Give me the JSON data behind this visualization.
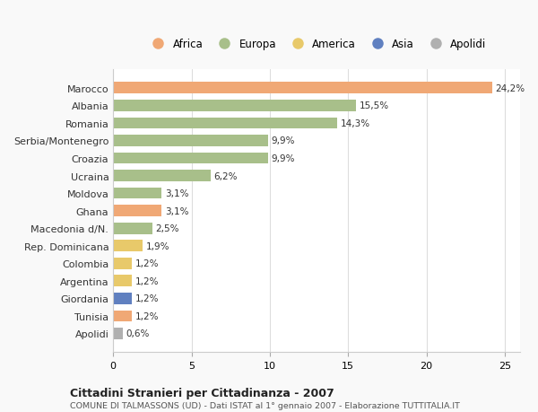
{
  "countries": [
    "Marocco",
    "Albania",
    "Romania",
    "Serbia/Montenegro",
    "Croazia",
    "Ucraina",
    "Moldova",
    "Ghana",
    "Macedonia d/N.",
    "Rep. Dominicana",
    "Colombia",
    "Argentina",
    "Giordania",
    "Tunisia",
    "Apolidi"
  ],
  "values": [
    24.2,
    15.5,
    14.3,
    9.9,
    9.9,
    6.2,
    3.1,
    3.1,
    2.5,
    1.9,
    1.2,
    1.2,
    1.2,
    1.2,
    0.6
  ],
  "labels": [
    "24,2%",
    "15,5%",
    "14,3%",
    "9,9%",
    "9,9%",
    "6,2%",
    "3,1%",
    "3,1%",
    "2,5%",
    "1,9%",
    "1,2%",
    "1,2%",
    "1,2%",
    "1,2%",
    "0,6%"
  ],
  "colors": [
    "#f0a875",
    "#a8bf8a",
    "#a8bf8a",
    "#a8bf8a",
    "#a8bf8a",
    "#a8bf8a",
    "#a8bf8a",
    "#f0a875",
    "#a8bf8a",
    "#e8c96a",
    "#e8c96a",
    "#e8c96a",
    "#6080c0",
    "#f0a875",
    "#b0b0b0"
  ],
  "legend_labels": [
    "Africa",
    "Europa",
    "America",
    "Asia",
    "Apolidi"
  ],
  "legend_colors": [
    "#f0a875",
    "#a8bf8a",
    "#e8c96a",
    "#6080c0",
    "#b0b0b0"
  ],
  "title": "Cittadini Stranieri per Cittadinanza - 2007",
  "subtitle": "COMUNE DI TALMASSONS (UD) - Dati ISTAT al 1° gennaio 2007 - Elaborazione TUTTITALIA.IT",
  "xlim": [
    0,
    26
  ],
  "xticks": [
    0,
    5,
    10,
    15,
    20,
    25
  ],
  "background_color": "#f9f9f9",
  "bar_background": "#ffffff"
}
